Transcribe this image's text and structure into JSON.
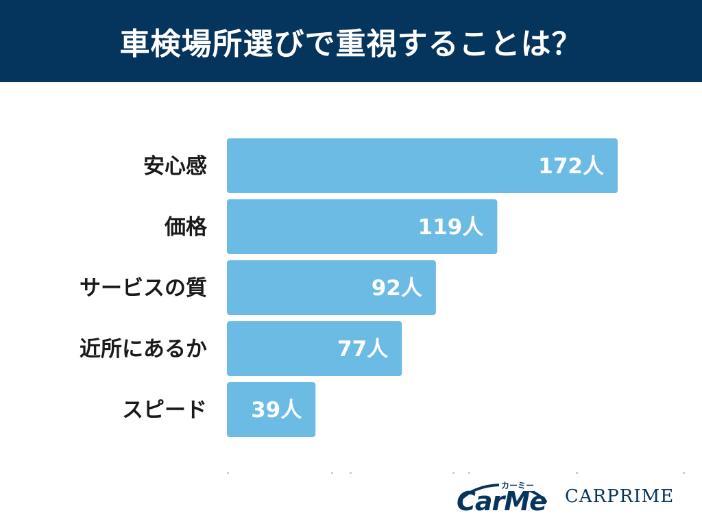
{
  "header": {
    "title": "車検場所選びで重視することは？"
  },
  "colors": {
    "header_bg": "#05345c",
    "bar": "#6bbbe4",
    "logo": "#05345c"
  },
  "logos": {
    "carme_word": "CarMe",
    "carme_kana": "カーミー",
    "carprime": "CARPRIME"
  },
  "chart_data": {
    "type": "bar",
    "orientation": "horizontal",
    "title": "車検場所選びで重視することは？",
    "categories": [
      "安心感",
      "価格",
      "サービスの質",
      "近所にあるか",
      "スピード"
    ],
    "values": [
      172,
      119,
      92,
      77,
      39
    ],
    "value_labels": [
      "172人",
      "119人",
      "92人",
      "77人",
      "39人"
    ],
    "grid": false,
    "legend": "none"
  }
}
